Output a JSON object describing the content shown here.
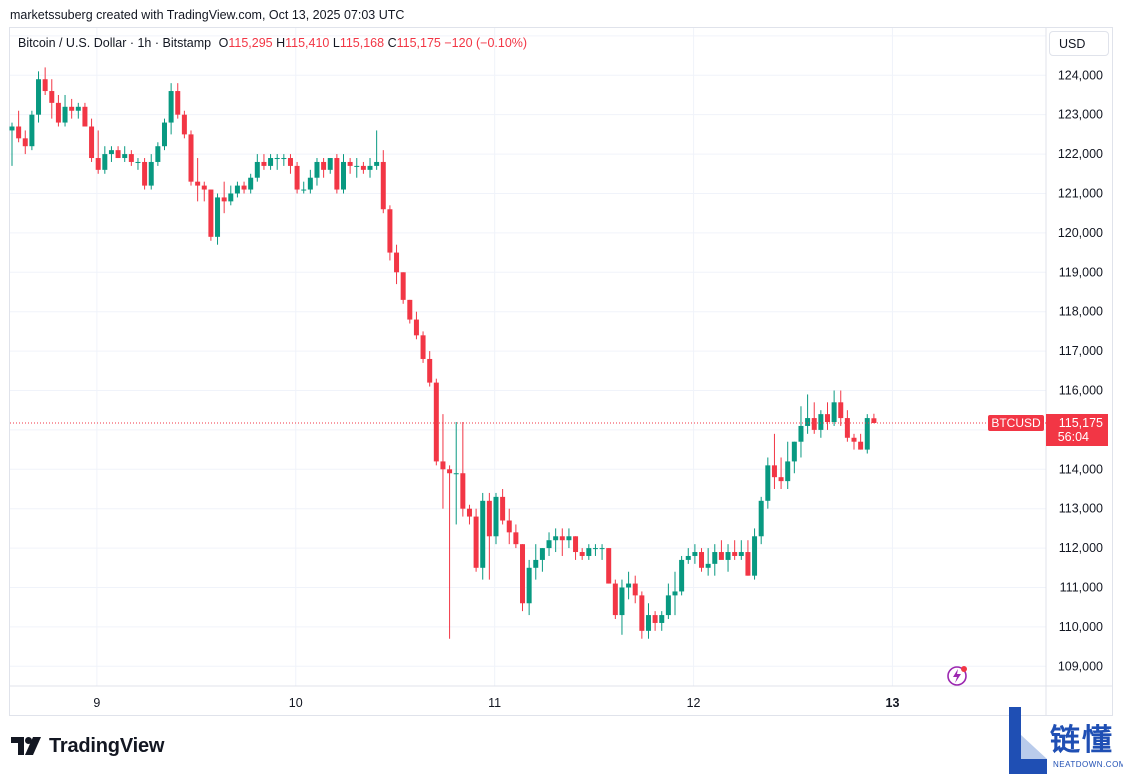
{
  "header": {
    "text": "marketssuberg created with TradingView.com, Oct 13, 2025 07:03 UTC"
  },
  "legend": {
    "symbol": "Bitcoin / U.S. Dollar · 1h · Bitstamp",
    "o_key": "O",
    "o_val": "115,295",
    "h_key": "H",
    "h_val": "115,410",
    "l_key": "L",
    "l_val": "115,168",
    "c_key": "C",
    "c_val": "115,175",
    "change": "−120 (−0.10%)"
  },
  "currency_button": "USD",
  "price_label": {
    "symbol": "BTCUSD",
    "price": "115,175",
    "countdown": "56:04"
  },
  "branding": {
    "logo_text": "TradingView",
    "watermark_cn": "链懂",
    "watermark_en": "NEATDOWN.COM"
  },
  "colors": {
    "up": "#089981",
    "down": "#f23645",
    "grid": "#f0f3fa",
    "text": "#131722",
    "watermark": "#1f4fb4"
  },
  "chart_data": {
    "type": "candlestick",
    "symbol": "BTCUSD",
    "timeframe": "1h",
    "y_axis": {
      "range": [
        108500,
        125200
      ],
      "ticks": [
        "109,000",
        "110,000",
        "111,000",
        "112,000",
        "113,000",
        "114,000",
        "115,000",
        "116,000",
        "117,000",
        "118,000",
        "119,000",
        "120,000",
        "121,000",
        "122,000",
        "123,000",
        "124,000",
        "125,000"
      ],
      "tick_values": [
        109000,
        110000,
        111000,
        112000,
        113000,
        114000,
        115000,
        116000,
        117000,
        118000,
        119000,
        120000,
        121000,
        122000,
        123000,
        124000,
        125000
      ]
    },
    "x_axis": {
      "ticks": [
        "9",
        "10",
        "11",
        "12",
        "13"
      ],
      "tick_hours": [
        12.8,
        42.8,
        72.8,
        102.8,
        132.8
      ],
      "bold_tick": "13"
    },
    "last_price": 115175,
    "candles": [
      [
        122600,
        122800,
        121700,
        122700
      ],
      [
        122700,
        123100,
        122300,
        122400
      ],
      [
        122400,
        122600,
        122000,
        122200
      ],
      [
        122200,
        123100,
        122100,
        123000
      ],
      [
        123000,
        124100,
        122800,
        123900
      ],
      [
        123900,
        124200,
        123500,
        123600
      ],
      [
        123600,
        123900,
        122900,
        123300
      ],
      [
        123300,
        123500,
        122700,
        122800
      ],
      [
        122800,
        123500,
        122700,
        123200
      ],
      [
        123200,
        123400,
        122900,
        123100
      ],
      [
        123100,
        123300,
        122900,
        123200
      ],
      [
        123200,
        123300,
        122700,
        122700
      ],
      [
        122700,
        122900,
        121800,
        121900
      ],
      [
        121900,
        122600,
        121500,
        121600
      ],
      [
        121600,
        122200,
        121500,
        122000
      ],
      [
        122000,
        122200,
        121800,
        122100
      ],
      [
        122100,
        122200,
        121900,
        121900
      ],
      [
        121900,
        122200,
        121800,
        122000
      ],
      [
        122000,
        122100,
        121700,
        121800
      ],
      [
        121800,
        121900,
        121600,
        121800
      ],
      [
        121800,
        121900,
        121100,
        121200
      ],
      [
        121200,
        122000,
        121100,
        121800
      ],
      [
        121800,
        122300,
        121700,
        122200
      ],
      [
        122200,
        122900,
        122100,
        122800
      ],
      [
        122800,
        123800,
        122500,
        123600
      ],
      [
        123600,
        123800,
        122900,
        123000
      ],
      [
        123000,
        123100,
        122400,
        122500
      ],
      [
        122500,
        122600,
        121200,
        121300
      ],
      [
        121300,
        121900,
        120800,
        121200
      ],
      [
        121200,
        121300,
        120800,
        121100
      ],
      [
        121100,
        121100,
        119800,
        119900
      ],
      [
        119900,
        121000,
        119700,
        120900
      ],
      [
        120900,
        121300,
        120500,
        120800
      ],
      [
        120800,
        121200,
        120700,
        121000
      ],
      [
        121000,
        121300,
        120900,
        121200
      ],
      [
        121200,
        121300,
        121000,
        121100
      ],
      [
        121100,
        121500,
        121000,
        121400
      ],
      [
        121400,
        122000,
        121300,
        121800
      ],
      [
        121800,
        122000,
        121600,
        121700
      ],
      [
        121700,
        122000,
        121600,
        121900
      ],
      [
        121900,
        122000,
        121600,
        121900
      ],
      [
        121900,
        122000,
        121700,
        121900
      ],
      [
        121900,
        122000,
        121500,
        121700
      ],
      [
        121700,
        121800,
        121000,
        121100
      ],
      [
        121100,
        121300,
        121000,
        121100
      ],
      [
        121100,
        121600,
        121000,
        121400
      ],
      [
        121400,
        121900,
        121200,
        121800
      ],
      [
        121800,
        121900,
        121400,
        121600
      ],
      [
        121600,
        121900,
        121500,
        121900
      ],
      [
        121900,
        122000,
        121000,
        121100
      ],
      [
        121100,
        122000,
        121000,
        121800
      ],
      [
        121800,
        121900,
        121500,
        121700
      ],
      [
        121700,
        121900,
        121400,
        121700
      ],
      [
        121700,
        121800,
        121500,
        121600
      ],
      [
        121600,
        121900,
        121400,
        121700
      ],
      [
        121700,
        122600,
        121600,
        121800
      ],
      [
        121800,
        122100,
        120500,
        120600
      ],
      [
        120600,
        120700,
        119300,
        119500
      ],
      [
        119500,
        119700,
        118700,
        119000
      ],
      [
        119000,
        119000,
        118200,
        118300
      ],
      [
        118300,
        118300,
        117700,
        117800
      ],
      [
        117800,
        118000,
        117300,
        117400
      ],
      [
        117400,
        117500,
        116700,
        116800
      ],
      [
        116800,
        117000,
        116100,
        116200
      ],
      [
        116200,
        116300,
        114100,
        114200
      ],
      [
        114200,
        115400,
        113000,
        114000
      ],
      [
        114000,
        114100,
        109700,
        113900
      ],
      [
        113900,
        115200,
        112600,
        113900
      ],
      [
        113900,
        115200,
        112800,
        113000
      ],
      [
        113000,
        113100,
        112600,
        112800
      ],
      [
        112800,
        113000,
        111400,
        111500
      ],
      [
        111500,
        113400,
        111200,
        113200
      ],
      [
        113200,
        113400,
        111200,
        112300
      ],
      [
        112300,
        113400,
        112100,
        113300
      ],
      [
        113300,
        113500,
        112600,
        112700
      ],
      [
        112700,
        113000,
        112100,
        112400
      ],
      [
        112400,
        112600,
        112000,
        112100
      ],
      [
        112100,
        112100,
        110400,
        110600
      ],
      [
        110600,
        111700,
        110300,
        111500
      ],
      [
        111500,
        112100,
        111200,
        111700
      ],
      [
        111700,
        112000,
        111400,
        112000
      ],
      [
        112000,
        112400,
        111800,
        112200
      ],
      [
        112200,
        112500,
        111900,
        112300
      ],
      [
        112300,
        112500,
        111800,
        112200
      ],
      [
        112200,
        112500,
        112000,
        112300
      ],
      [
        112300,
        112300,
        111700,
        111900
      ],
      [
        111900,
        112000,
        111700,
        111800
      ],
      [
        111800,
        112100,
        111700,
        112000
      ],
      [
        112000,
        112100,
        111800,
        112000
      ],
      [
        112000,
        112100,
        111700,
        112000
      ],
      [
        112000,
        112000,
        111100,
        111100
      ],
      [
        111100,
        111200,
        110200,
        110300
      ],
      [
        110300,
        111200,
        109800,
        111000
      ],
      [
        111000,
        111400,
        110700,
        111100
      ],
      [
        111100,
        111300,
        110600,
        110800
      ],
      [
        110800,
        110900,
        109700,
        109900
      ],
      [
        109900,
        110600,
        109700,
        110300
      ],
      [
        110300,
        110400,
        109900,
        110100
      ],
      [
        110100,
        110400,
        109900,
        110300
      ],
      [
        110300,
        111100,
        110200,
        110800
      ],
      [
        110800,
        111400,
        110300,
        110900
      ],
      [
        110900,
        111800,
        110800,
        111700
      ],
      [
        111700,
        112000,
        111600,
        111800
      ],
      [
        111800,
        112100,
        111600,
        111900
      ],
      [
        111900,
        112000,
        111400,
        111500
      ],
      [
        111500,
        112000,
        111300,
        111600
      ],
      [
        111600,
        112100,
        111300,
        111900
      ],
      [
        111900,
        112200,
        111800,
        111700
      ],
      [
        111700,
        112100,
        111400,
        111900
      ],
      [
        111900,
        112200,
        111700,
        111800
      ],
      [
        111800,
        112200,
        111700,
        111900
      ],
      [
        111900,
        112200,
        111300,
        111300
      ],
      [
        111300,
        112500,
        111200,
        112300
      ],
      [
        112300,
        113300,
        112100,
        113200
      ],
      [
        113200,
        114300,
        113000,
        114100
      ],
      [
        114100,
        114900,
        113500,
        113800
      ],
      [
        113800,
        114300,
        113500,
        113700
      ],
      [
        113700,
        114700,
        113500,
        114200
      ],
      [
        114200,
        114700,
        113900,
        114700
      ],
      [
        114700,
        115600,
        114300,
        115100
      ],
      [
        115100,
        115900,
        114900,
        115300
      ],
      [
        115300,
        115700,
        114900,
        115000
      ],
      [
        115000,
        115500,
        114800,
        115400
      ],
      [
        115400,
        115700,
        115000,
        115200
      ],
      [
        115200,
        116000,
        115100,
        115700
      ],
      [
        115700,
        116000,
        115100,
        115300
      ],
      [
        115300,
        115500,
        114700,
        114800
      ],
      [
        114800,
        114900,
        114500,
        114700
      ],
      [
        114700,
        114900,
        114500,
        114500
      ],
      [
        114500,
        115400,
        114400,
        115300
      ],
      [
        115295,
        115410,
        115168,
        115175
      ]
    ]
  }
}
